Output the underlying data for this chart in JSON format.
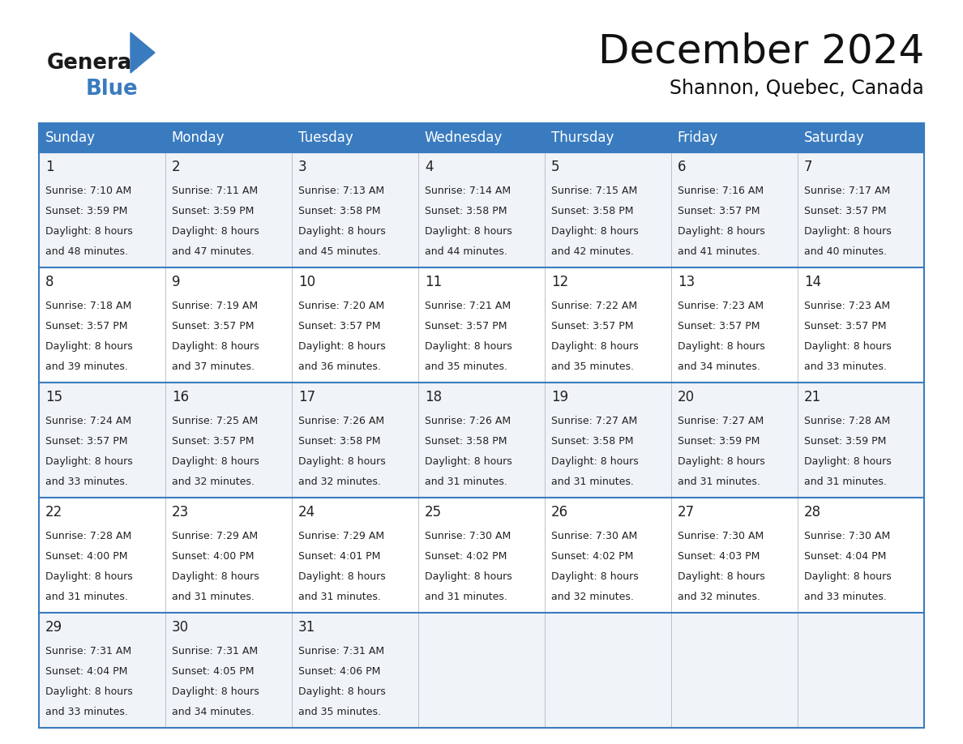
{
  "title": "December 2024",
  "subtitle": "Shannon, Quebec, Canada",
  "header_bg": "#3a7bbf",
  "header_text_color": "#ffffff",
  "cell_bg_light": "#f0f4f8",
  "cell_bg_white": "#ffffff",
  "text_color": "#222222",
  "border_color": "#3a7bbf",
  "days_of_week": [
    "Sunday",
    "Monday",
    "Tuesday",
    "Wednesday",
    "Thursday",
    "Friday",
    "Saturday"
  ],
  "weeks": [
    [
      {
        "day": 1,
        "sunrise": "7:10 AM",
        "sunset": "3:59 PM",
        "daylight": "8 hours and 48 minutes."
      },
      {
        "day": 2,
        "sunrise": "7:11 AM",
        "sunset": "3:59 PM",
        "daylight": "8 hours and 47 minutes."
      },
      {
        "day": 3,
        "sunrise": "7:13 AM",
        "sunset": "3:58 PM",
        "daylight": "8 hours and 45 minutes."
      },
      {
        "day": 4,
        "sunrise": "7:14 AM",
        "sunset": "3:58 PM",
        "daylight": "8 hours and 44 minutes."
      },
      {
        "day": 5,
        "sunrise": "7:15 AM",
        "sunset": "3:58 PM",
        "daylight": "8 hours and 42 minutes."
      },
      {
        "day": 6,
        "sunrise": "7:16 AM",
        "sunset": "3:57 PM",
        "daylight": "8 hours and 41 minutes."
      },
      {
        "day": 7,
        "sunrise": "7:17 AM",
        "sunset": "3:57 PM",
        "daylight": "8 hours and 40 minutes."
      }
    ],
    [
      {
        "day": 8,
        "sunrise": "7:18 AM",
        "sunset": "3:57 PM",
        "daylight": "8 hours and 39 minutes."
      },
      {
        "day": 9,
        "sunrise": "7:19 AM",
        "sunset": "3:57 PM",
        "daylight": "8 hours and 37 minutes."
      },
      {
        "day": 10,
        "sunrise": "7:20 AM",
        "sunset": "3:57 PM",
        "daylight": "8 hours and 36 minutes."
      },
      {
        "day": 11,
        "sunrise": "7:21 AM",
        "sunset": "3:57 PM",
        "daylight": "8 hours and 35 minutes."
      },
      {
        "day": 12,
        "sunrise": "7:22 AM",
        "sunset": "3:57 PM",
        "daylight": "8 hours and 35 minutes."
      },
      {
        "day": 13,
        "sunrise": "7:23 AM",
        "sunset": "3:57 PM",
        "daylight": "8 hours and 34 minutes."
      },
      {
        "day": 14,
        "sunrise": "7:23 AM",
        "sunset": "3:57 PM",
        "daylight": "8 hours and 33 minutes."
      }
    ],
    [
      {
        "day": 15,
        "sunrise": "7:24 AM",
        "sunset": "3:57 PM",
        "daylight": "8 hours and 33 minutes."
      },
      {
        "day": 16,
        "sunrise": "7:25 AM",
        "sunset": "3:57 PM",
        "daylight": "8 hours and 32 minutes."
      },
      {
        "day": 17,
        "sunrise": "7:26 AM",
        "sunset": "3:58 PM",
        "daylight": "8 hours and 32 minutes."
      },
      {
        "day": 18,
        "sunrise": "7:26 AM",
        "sunset": "3:58 PM",
        "daylight": "8 hours and 31 minutes."
      },
      {
        "day": 19,
        "sunrise": "7:27 AM",
        "sunset": "3:58 PM",
        "daylight": "8 hours and 31 minutes."
      },
      {
        "day": 20,
        "sunrise": "7:27 AM",
        "sunset": "3:59 PM",
        "daylight": "8 hours and 31 minutes."
      },
      {
        "day": 21,
        "sunrise": "7:28 AM",
        "sunset": "3:59 PM",
        "daylight": "8 hours and 31 minutes."
      }
    ],
    [
      {
        "day": 22,
        "sunrise": "7:28 AM",
        "sunset": "4:00 PM",
        "daylight": "8 hours and 31 minutes."
      },
      {
        "day": 23,
        "sunrise": "7:29 AM",
        "sunset": "4:00 PM",
        "daylight": "8 hours and 31 minutes."
      },
      {
        "day": 24,
        "sunrise": "7:29 AM",
        "sunset": "4:01 PM",
        "daylight": "8 hours and 31 minutes."
      },
      {
        "day": 25,
        "sunrise": "7:30 AM",
        "sunset": "4:02 PM",
        "daylight": "8 hours and 31 minutes."
      },
      {
        "day": 26,
        "sunrise": "7:30 AM",
        "sunset": "4:02 PM",
        "daylight": "8 hours and 32 minutes."
      },
      {
        "day": 27,
        "sunrise": "7:30 AM",
        "sunset": "4:03 PM",
        "daylight": "8 hours and 32 minutes."
      },
      {
        "day": 28,
        "sunrise": "7:30 AM",
        "sunset": "4:04 PM",
        "daylight": "8 hours and 33 minutes."
      }
    ],
    [
      {
        "day": 29,
        "sunrise": "7:31 AM",
        "sunset": "4:04 PM",
        "daylight": "8 hours and 33 minutes."
      },
      {
        "day": 30,
        "sunrise": "7:31 AM",
        "sunset": "4:05 PM",
        "daylight": "8 hours and 34 minutes."
      },
      {
        "day": 31,
        "sunrise": "7:31 AM",
        "sunset": "4:06 PM",
        "daylight": "8 hours and 35 minutes."
      },
      null,
      null,
      null,
      null
    ]
  ],
  "logo_general_color": "#1a1a1a",
  "logo_blue_color": "#3a7bbf",
  "logo_triangle_color": "#3a7bbf",
  "title_fontsize": 36,
  "subtitle_fontsize": 17,
  "header_fontsize": 12,
  "day_num_fontsize": 12,
  "cell_text_fontsize": 9
}
